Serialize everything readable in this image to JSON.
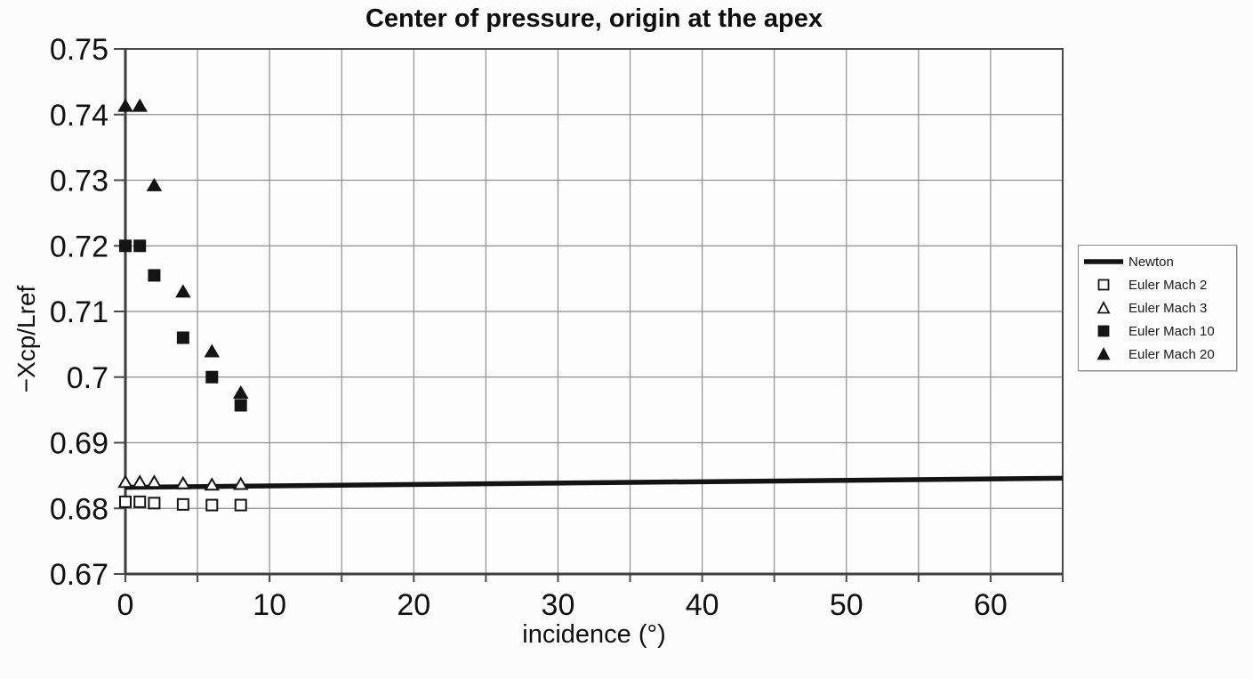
{
  "chart_data": {
    "type": "scatter",
    "title": "Center of pressure, origin at the apex",
    "xlabel": "incidence (°)",
    "ylabel": "−Xcp/Lref",
    "xlim": [
      0,
      65
    ],
    "ylim": [
      0.67,
      0.75
    ],
    "grid": true,
    "x_grid_step": 5,
    "y_grid_step": 0.01,
    "legend_position": "right-outside",
    "x_ticks": [
      {
        "v": 0,
        "label": "0"
      },
      {
        "v": 10,
        "label": "10"
      },
      {
        "v": 20,
        "label": "20"
      },
      {
        "v": 30,
        "label": "30"
      },
      {
        "v": 40,
        "label": "40"
      },
      {
        "v": 50,
        "label": "50"
      },
      {
        "v": 60,
        "label": "60"
      }
    ],
    "y_ticks": [
      {
        "v": 0.75,
        "label": "0.75"
      },
      {
        "v": 0.74,
        "label": "0.74"
      },
      {
        "v": 0.73,
        "label": "0.73"
      },
      {
        "v": 0.72,
        "label": "0.72"
      },
      {
        "v": 0.71,
        "label": "0.71"
      },
      {
        "v": 0.7,
        "label": "0.7"
      },
      {
        "v": 0.69,
        "label": "0.69"
      },
      {
        "v": 0.68,
        "label": "0.68"
      },
      {
        "v": 0.67,
        "label": "0.67"
      }
    ],
    "series": [
      {
        "name": "Newton",
        "kind": "line",
        "points": [
          [
            0,
            0.6832
          ],
          [
            65,
            0.6846
          ]
        ]
      },
      {
        "name": "Euler Mach 2",
        "kind": "scatter",
        "marker": "square-open",
        "x": [
          0,
          1,
          2,
          4,
          6,
          8
        ],
        "y": [
          0.681,
          0.681,
          0.6808,
          0.6806,
          0.6805,
          0.6805
        ]
      },
      {
        "name": "Euler Mach 3",
        "kind": "scatter",
        "marker": "triangle-open",
        "x": [
          0,
          1,
          2,
          4,
          6,
          8
        ],
        "y": [
          0.684,
          0.684,
          0.684,
          0.6838,
          0.6836,
          0.6837
        ]
      },
      {
        "name": "Euler Mach 10",
        "kind": "scatter",
        "marker": "square-filled",
        "x": [
          0,
          1,
          2,
          4,
          6,
          8
        ],
        "y": [
          0.72,
          0.72,
          0.7155,
          0.706,
          0.7,
          0.6957
        ]
      },
      {
        "name": "Euler Mach 20",
        "kind": "scatter",
        "marker": "triangle-filled",
        "x": [
          0,
          1,
          2,
          4,
          6,
          8
        ],
        "y": [
          0.7413,
          0.7413,
          0.7292,
          0.713,
          0.7039,
          0.6976
        ]
      }
    ]
  },
  "colors": {
    "ink": "#141414",
    "grid": "#8f8f8f",
    "frame": "#4a4a4a",
    "axis": "#3d3d3d",
    "marker_fill_open": "#fdfdfd",
    "background": "#fcfcfc"
  }
}
